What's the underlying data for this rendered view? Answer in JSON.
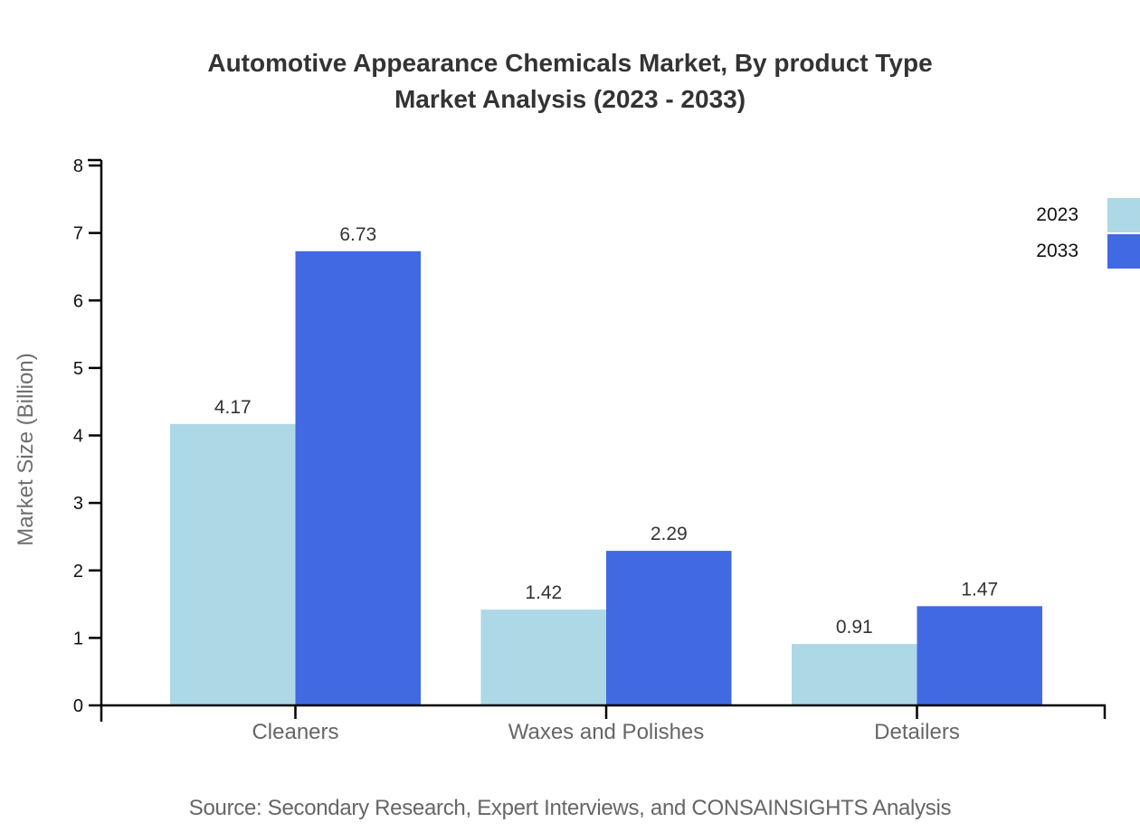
{
  "chart": {
    "title_line1": "Automotive Appearance Chemicals Market, By product Type",
    "title_line2": "Market Analysis (2023 - 2033)",
    "source": "Source: Secondary Research, Expert Interviews, and CONSAINSIGHTS Analysis"
  },
  "chart_data": {
    "type": "bar",
    "title": "Automotive Appearance Chemicals Market, By product Type Market Analysis (2023 - 2033)",
    "categories": [
      "Cleaners",
      "Waxes and Polishes",
      "Detailers"
    ],
    "series": [
      {
        "name": "2023",
        "color": "#ADD8E6",
        "values": [
          4.17,
          1.42,
          0.91
        ]
      },
      {
        "name": "2033",
        "color": "#4169E1",
        "values": [
          6.73,
          2.29,
          1.47
        ]
      }
    ],
    "xlabel": "",
    "ylabel": "Market Size (Billion)",
    "ylim": [
      0,
      8
    ],
    "yticks": [
      0,
      1,
      2,
      3,
      4,
      5,
      6,
      7,
      8
    ],
    "value_labels_shown": true,
    "grid": false,
    "legend_position": "right-edge",
    "colors": {
      "axis": "#000000",
      "tick_label": "#111111",
      "value_label": "#333333",
      "category_label": "#666666",
      "axis_title": "#6e6e6e",
      "title": "#333333",
      "source": "#666666"
    }
  }
}
